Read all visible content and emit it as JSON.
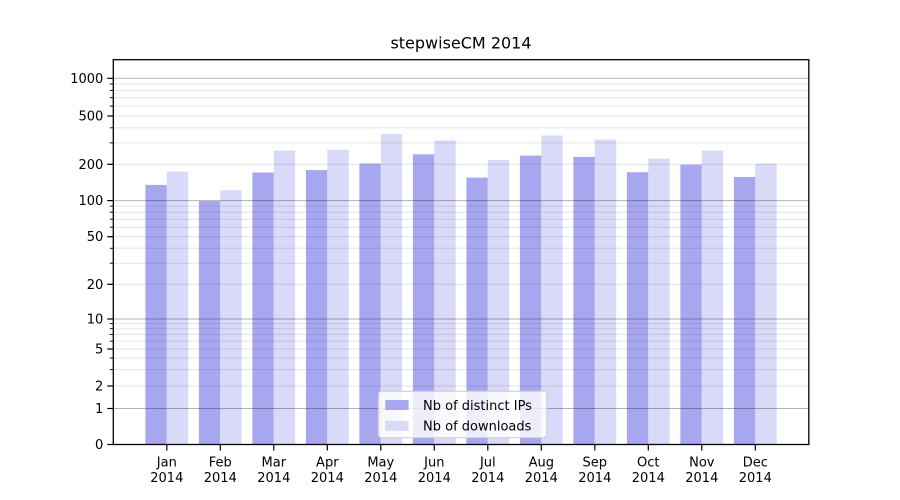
{
  "chart_data": {
    "type": "bar",
    "title": "stepwiseCM 2014",
    "categories": [
      "Jan",
      "Feb",
      "Mar",
      "Apr",
      "May",
      "Jun",
      "Jul",
      "Aug",
      "Sep",
      "Oct",
      "Nov",
      "Dec"
    ],
    "category_year": "2014",
    "series": [
      {
        "name": "Nb of distinct IPs",
        "color": "#a7a7f0",
        "values": [
          135,
          99,
          171,
          179,
          203,
          242,
          155,
          236,
          230,
          172,
          199,
          157
        ]
      },
      {
        "name": "Nb of downloads",
        "color": "#d9d9f8",
        "values": [
          174,
          122,
          260,
          264,
          355,
          315,
          217,
          345,
          320,
          223,
          260,
          203
        ]
      }
    ],
    "y_axis": {
      "scale": "symlog",
      "tick_labels": [
        0,
        1,
        2,
        5,
        10,
        20,
        50,
        100,
        200,
        500,
        1000
      ],
      "major_gridlines": [
        1,
        10,
        100,
        1000
      ],
      "minor_gridlines": [
        2,
        3,
        4,
        5,
        6,
        7,
        8,
        9,
        20,
        30,
        40,
        50,
        60,
        70,
        80,
        90,
        200,
        300,
        400,
        500,
        600,
        700,
        800,
        900
      ],
      "ylim_top_approx": 1500
    },
    "grid": true,
    "legend_position": "lower center"
  },
  "legend": {
    "items": [
      {
        "label": "Nb of distinct IPs",
        "color": "#a7a7f0"
      },
      {
        "label": "Nb of downloads",
        "color": "#d9d9f8"
      }
    ]
  },
  "colors": {
    "spine": "#000000",
    "major_grid": "rgba(0,0,0,0.30)",
    "minor_grid": "rgba(0,0,0,0.10)",
    "legend_border": "#cccccc",
    "legend_bg": "#ffffff"
  }
}
